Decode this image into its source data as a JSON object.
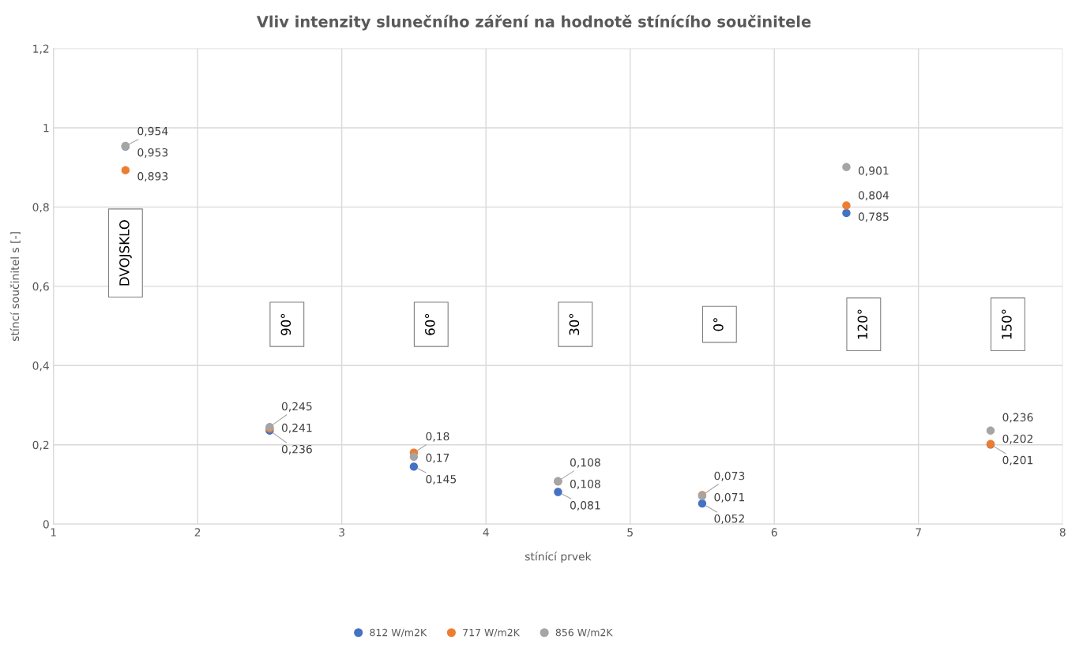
{
  "chart_data": {
    "type": "scatter",
    "title": "Vliv intenzity slunečního záření na hodnotě stínícího součinitele",
    "xlabel": "stínící prvek",
    "ylabel": "stíncí součinitel s [-]",
    "x": [
      1.5,
      2.5,
      3.5,
      4.5,
      5.5,
      6.5,
      7.5
    ],
    "series": [
      {
        "name": "812 W/m2K",
        "color": "#4472c4",
        "values": [
          0.953,
          0.236,
          0.145,
          0.081,
          0.052,
          0.785,
          0.201
        ],
        "value_labels": [
          "0,953",
          "0,236",
          "0,145",
          "0,081",
          "0,052",
          "0,785",
          "0,201"
        ]
      },
      {
        "name": "717 W/m2K",
        "color": "#ed7d31",
        "values": [
          0.893,
          0.241,
          0.18,
          0.108,
          0.073,
          0.804,
          0.202
        ],
        "value_labels": [
          "0,893",
          "0,241",
          "0,18",
          "0,108",
          "0,073",
          "0,804",
          "0,202"
        ]
      },
      {
        "name": "856 W/m2K",
        "color": "#a5a5a5",
        "values": [
          0.954,
          0.245,
          0.17,
          0.108,
          0.071,
          0.901,
          0.236
        ],
        "value_labels": [
          "0,954",
          "0,245",
          "0,17",
          "0,108",
          "0,071",
          "0,901",
          "0,236"
        ]
      }
    ],
    "annotations": [
      "DVOJSKLO",
      "90°",
      "60°",
      "30°",
      "0°",
      "120°",
      "150°"
    ],
    "xlim": [
      1,
      8
    ],
    "xticks": [
      1,
      2,
      3,
      4,
      5,
      6,
      7,
      8
    ],
    "ylim": [
      0,
      1.2
    ],
    "yticks": [
      0,
      {
        "value": 0.2,
        "label": "0,2"
      },
      {
        "value": 0.4,
        "label": "0,4"
      },
      {
        "value": 0.6,
        "label": "0,6"
      },
      {
        "value": 0.8,
        "label": "0,8"
      },
      1,
      {
        "value": 1.2,
        "label": "1,2"
      }
    ],
    "grid": true,
    "legend": "bottom",
    "marker": "circle"
  }
}
